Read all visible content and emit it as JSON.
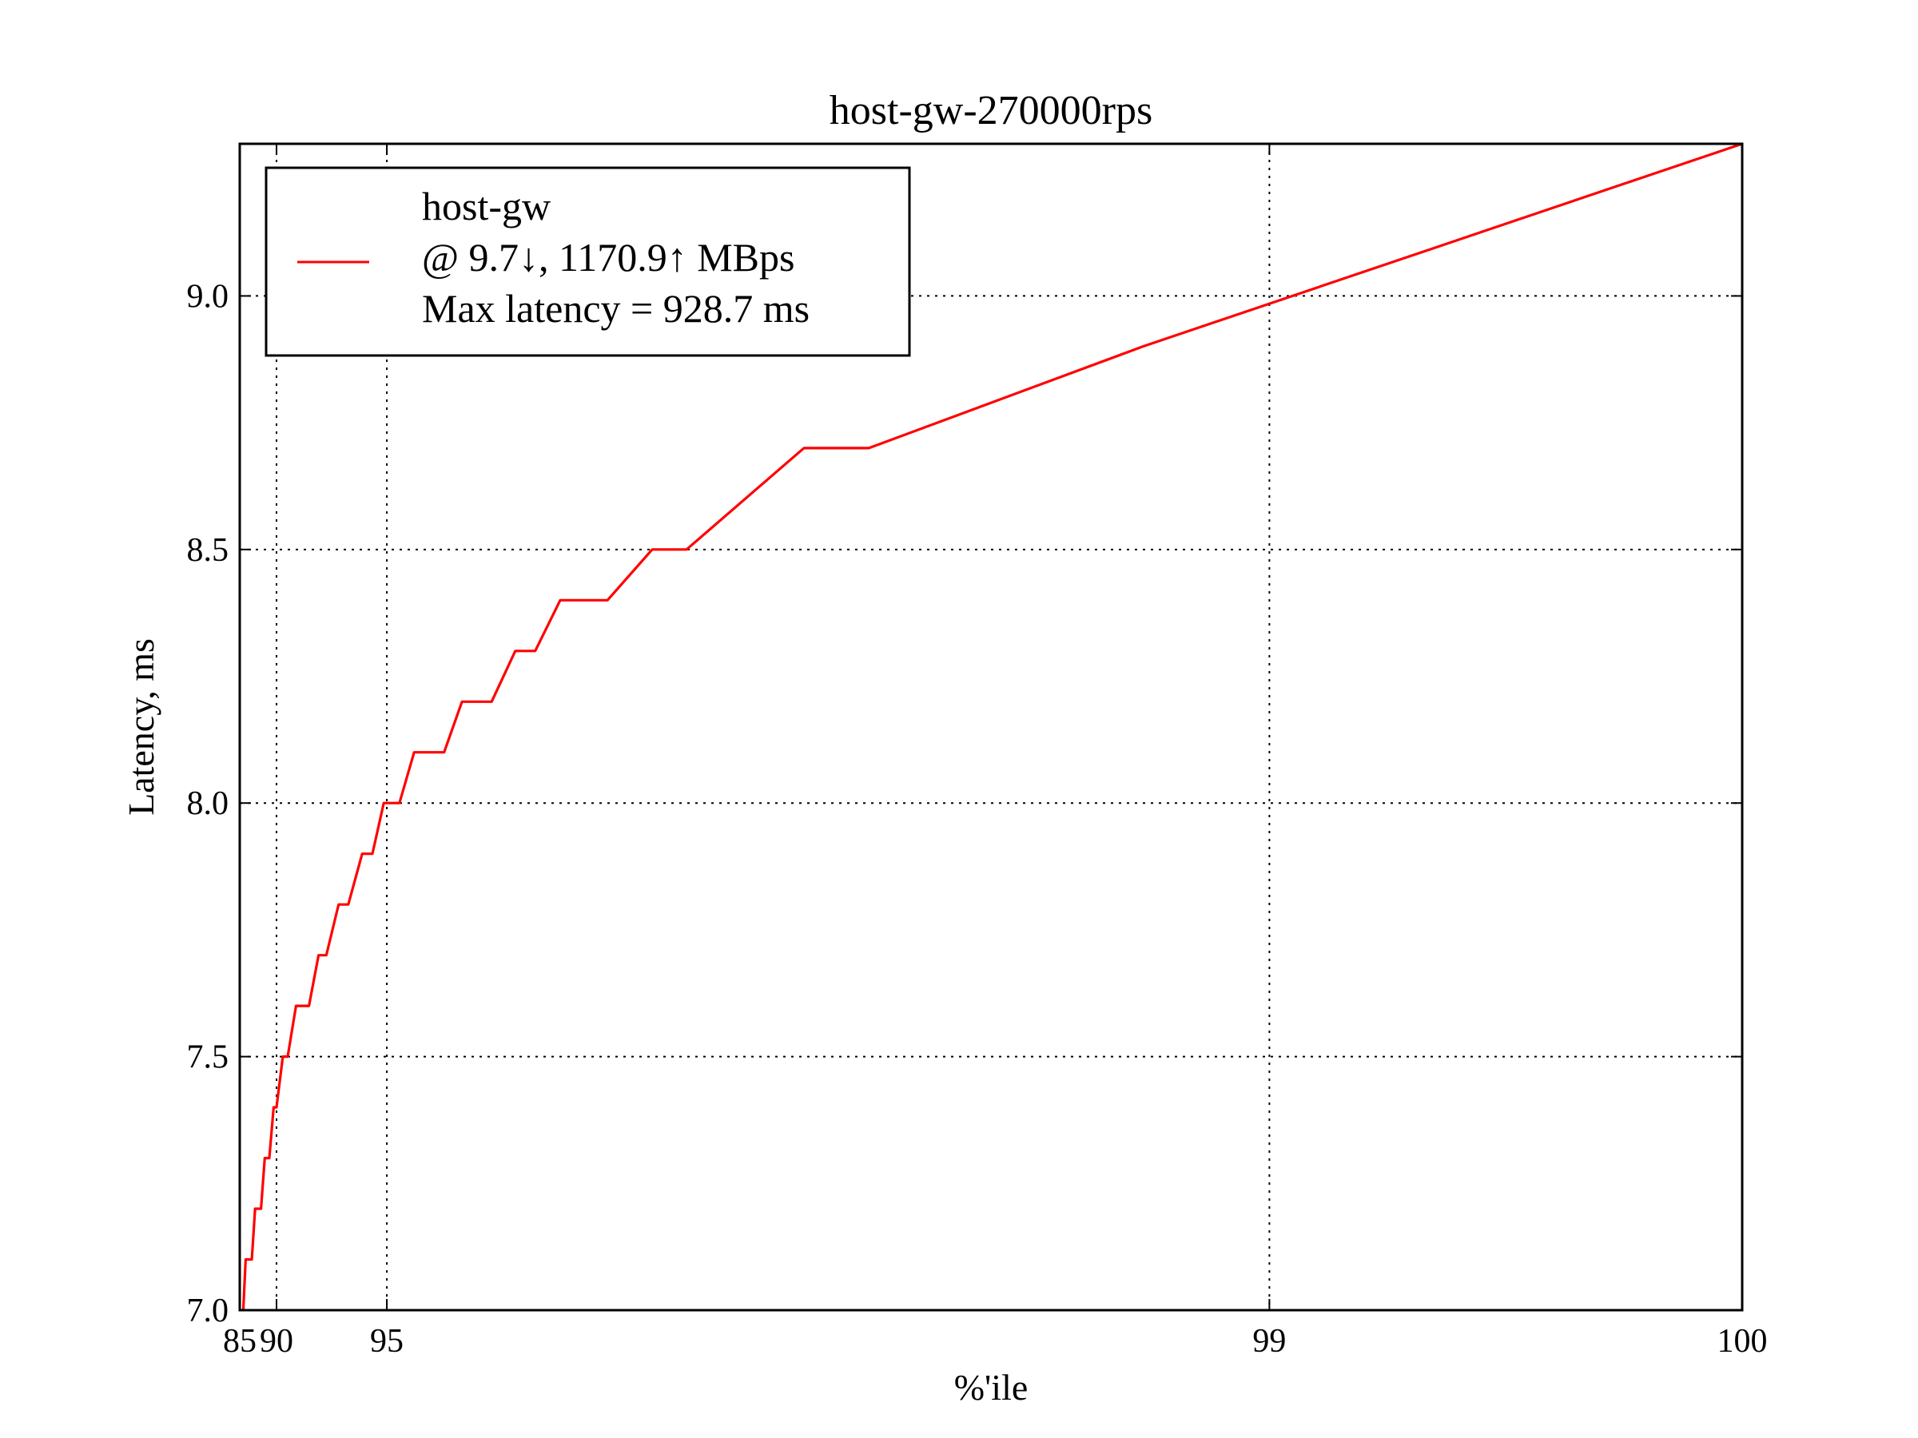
{
  "chart_data": {
    "type": "line",
    "title": "host-gw-270000rps",
    "xlabel": "%'ile",
    "ylabel": "Latency, ms",
    "xlim": [
      85,
      100
    ],
    "ylim": [
      7.0,
      9.3
    ],
    "x_scale": "reciprocal (tick labels show percentile)",
    "x_ticks": [
      "85",
      "90",
      "95",
      "99",
      "100"
    ],
    "y_ticks": [
      "7.0",
      "7.5",
      "8.0",
      "8.5",
      "9.0"
    ],
    "grid": true,
    "legend_position": "top-left",
    "series": [
      {
        "name": "host-gw",
        "legend_lines": [
          "host-gw",
          "@ 9.7↓, 1170.9↑ MBps",
          "Max latency = 928.7 ms"
        ],
        "color": "#ff0000",
        "points": [
          [
            85.69,
            7.0
          ],
          [
            86.11,
            7.1
          ],
          [
            87.11,
            7.1
          ],
          [
            87.59,
            7.2
          ],
          [
            88.36,
            7.2
          ],
          [
            88.81,
            7.3
          ],
          [
            89.3,
            7.3
          ],
          [
            89.73,
            7.4
          ],
          [
            90.0,
            7.4
          ],
          [
            90.54,
            7.5
          ],
          [
            90.92,
            7.5
          ],
          [
            91.5,
            7.6
          ],
          [
            92.27,
            7.6
          ],
          [
            92.76,
            7.7
          ],
          [
            93.11,
            7.7
          ],
          [
            93.6,
            7.8
          ],
          [
            93.94,
            7.8
          ],
          [
            94.37,
            7.9
          ],
          [
            94.65,
            7.9
          ],
          [
            94.93,
            8.0
          ],
          [
            95.27,
            8.0
          ],
          [
            95.55,
            8.1
          ],
          [
            96.03,
            8.1
          ],
          [
            96.27,
            8.2
          ],
          [
            96.61,
            8.2
          ],
          [
            96.84,
            8.3
          ],
          [
            97.01,
            8.3
          ],
          [
            97.2,
            8.4
          ],
          [
            97.5,
            8.4
          ],
          [
            97.73,
            8.5
          ],
          [
            97.88,
            8.5
          ],
          [
            98.27,
            8.7
          ],
          [
            98.43,
            8.7
          ],
          [
            98.87,
            8.9
          ],
          [
            99.3,
            9.3
          ]
        ]
      }
    ]
  }
}
